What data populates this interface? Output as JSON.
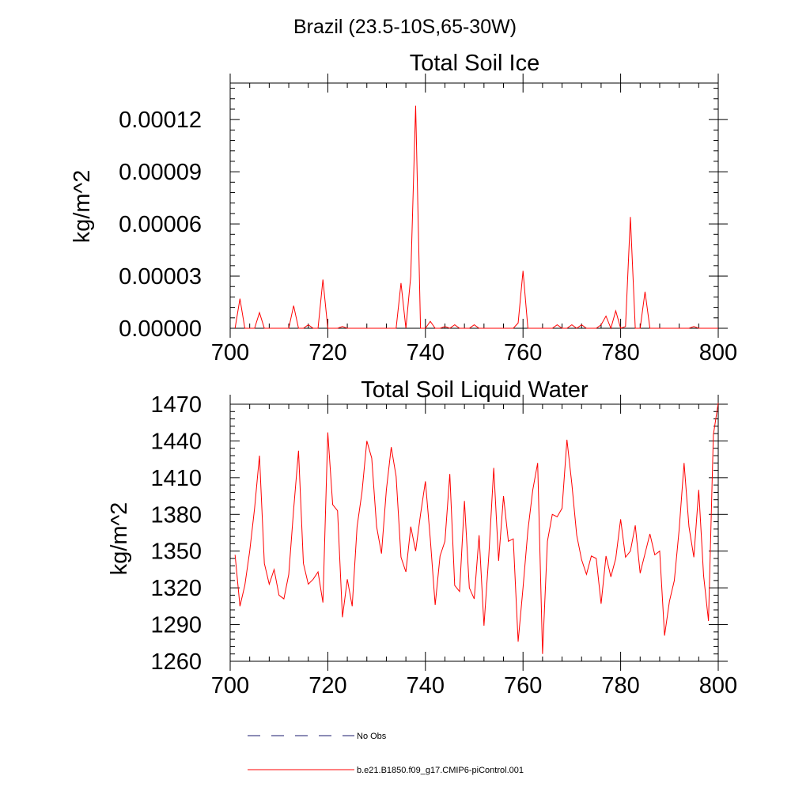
{
  "figure": {
    "title": "Brazil (23.5-10S,65-30W)"
  },
  "legend": {
    "entries": [
      {
        "label": "No Obs",
        "style": "dashed",
        "color": "#1a1a6e"
      },
      {
        "label": "b.e21.B1850.f09_g17.CMIP6-piControl.001",
        "style": "solid",
        "color": "#ff0000"
      }
    ]
  },
  "chart_data": [
    {
      "type": "line",
      "title": "Total Soil Ice",
      "xlabel": "",
      "ylabel": "kg/m^2",
      "xlim": [
        700,
        800
      ],
      "ylim": [
        0,
        0.000141
      ],
      "xticks": [
        700,
        720,
        740,
        760,
        780,
        800
      ],
      "xtick_labels": [
        "700",
        "720",
        "740",
        "760",
        "780",
        "800"
      ],
      "yticks": [
        0,
        3e-05,
        6e-05,
        9e-05,
        0.00012
      ],
      "ytick_labels": [
        "0.00000",
        "0.00003",
        "0.00006",
        "0.00009",
        "0.00012"
      ],
      "series": [
        {
          "name": "b.e21.B1850.f09_g17.CMIP6-piControl.001",
          "color": "#ff0000",
          "x": [
            701,
            702,
            703,
            704,
            705,
            706,
            707,
            708,
            709,
            710,
            711,
            712,
            713,
            714,
            715,
            716,
            717,
            718,
            719,
            720,
            721,
            722,
            723,
            724,
            725,
            726,
            727,
            728,
            729,
            730,
            731,
            732,
            733,
            734,
            735,
            736,
            737,
            738,
            739,
            740,
            741,
            742,
            743,
            744,
            745,
            746,
            747,
            748,
            749,
            750,
            751,
            752,
            753,
            754,
            755,
            756,
            757,
            758,
            759,
            760,
            761,
            762,
            763,
            764,
            765,
            766,
            767,
            768,
            769,
            770,
            771,
            772,
            773,
            774,
            775,
            776,
            777,
            778,
            779,
            780,
            781,
            782,
            783,
            784,
            785,
            786,
            787,
            788,
            789,
            790,
            791,
            792,
            793,
            794,
            795,
            796,
            797,
            798,
            799,
            800
          ],
          "values": [
            0,
            1.7e-05,
            0,
            0,
            0,
            9e-06,
            0,
            0,
            0,
            0,
            0,
            0,
            1.3e-05,
            0,
            0,
            2e-06,
            0,
            0,
            2.8e-05,
            0,
            0,
            0,
            1e-06,
            0,
            0,
            0,
            0,
            0,
            0,
            0,
            0,
            0,
            0,
            0,
            2.6e-05,
            0,
            3e-05,
            0.000128,
            0,
            0,
            4e-06,
            0,
            0,
            1e-06,
            0,
            2e-06,
            0,
            0,
            0,
            2e-06,
            0,
            0,
            0,
            0,
            0,
            0,
            0,
            0,
            3e-06,
            3.3e-05,
            0,
            0,
            0,
            0,
            0,
            0,
            2e-06,
            0,
            0,
            2e-06,
            0,
            2e-06,
            0,
            0,
            0,
            2e-06,
            7e-06,
            0,
            1e-05,
            0,
            1e-06,
            6.4e-05,
            0,
            0,
            2.1e-05,
            0,
            0,
            0,
            0,
            0,
            0,
            0,
            0,
            0,
            1e-06,
            0,
            0,
            0,
            0,
            0
          ]
        }
      ]
    },
    {
      "type": "line",
      "title": "Total Soil Liquid Water",
      "xlabel": "",
      "ylabel": "kg/m^2",
      "xlim": [
        700,
        800
      ],
      "ylim": [
        1260,
        1470
      ],
      "xticks": [
        700,
        720,
        740,
        760,
        780,
        800
      ],
      "xtick_labels": [
        "700",
        "720",
        "740",
        "760",
        "780",
        "800"
      ],
      "yticks": [
        1260,
        1290,
        1320,
        1350,
        1380,
        1410,
        1440,
        1470
      ],
      "ytick_labels": [
        "1260",
        "1290",
        "1320",
        "1350",
        "1380",
        "1410",
        "1440",
        "1470"
      ],
      "series": [
        {
          "name": "b.e21.B1850.f09_g17.CMIP6-piControl.001",
          "color": "#ff0000",
          "x": [
            701,
            702,
            703,
            704,
            705,
            706,
            707,
            708,
            709,
            710,
            711,
            712,
            713,
            714,
            715,
            716,
            717,
            718,
            719,
            720,
            721,
            722,
            723,
            724,
            725,
            726,
            727,
            728,
            729,
            730,
            731,
            732,
            733,
            734,
            735,
            736,
            737,
            738,
            739,
            740,
            741,
            742,
            743,
            744,
            745,
            746,
            747,
            748,
            749,
            750,
            751,
            752,
            753,
            754,
            755,
            756,
            757,
            758,
            759,
            760,
            761,
            762,
            763,
            764,
            765,
            766,
            767,
            768,
            769,
            770,
            771,
            772,
            773,
            774,
            775,
            776,
            777,
            778,
            779,
            780,
            781,
            782,
            783,
            784,
            785,
            786,
            787,
            788,
            789,
            790,
            791,
            792,
            793,
            794,
            795,
            796,
            797,
            798,
            799,
            800
          ],
          "values": [
            1347,
            1305,
            1322,
            1350,
            1385,
            1428,
            1340,
            1323,
            1335,
            1314,
            1311,
            1331,
            1384,
            1432,
            1340,
            1323,
            1327,
            1333,
            1308,
            1447,
            1388,
            1383,
            1296,
            1327,
            1305,
            1370,
            1398,
            1440,
            1426,
            1370,
            1348,
            1400,
            1435,
            1411,
            1345,
            1333,
            1370,
            1350,
            1380,
            1407,
            1360,
            1306,
            1346,
            1358,
            1413,
            1322,
            1317,
            1391,
            1320,
            1311,
            1363,
            1289,
            1347,
            1418,
            1342,
            1395,
            1358,
            1360,
            1276,
            1320,
            1367,
            1400,
            1422,
            1266,
            1358,
            1380,
            1378,
            1385,
            1441,
            1405,
            1363,
            1343,
            1331,
            1346,
            1344,
            1307,
            1346,
            1329,
            1344,
            1376,
            1345,
            1350,
            1371,
            1332,
            1348,
            1364,
            1347,
            1350,
            1281,
            1309,
            1326,
            1368,
            1422,
            1370,
            1345,
            1400,
            1330,
            1293,
            1445,
            1471
          ]
        }
      ]
    }
  ]
}
